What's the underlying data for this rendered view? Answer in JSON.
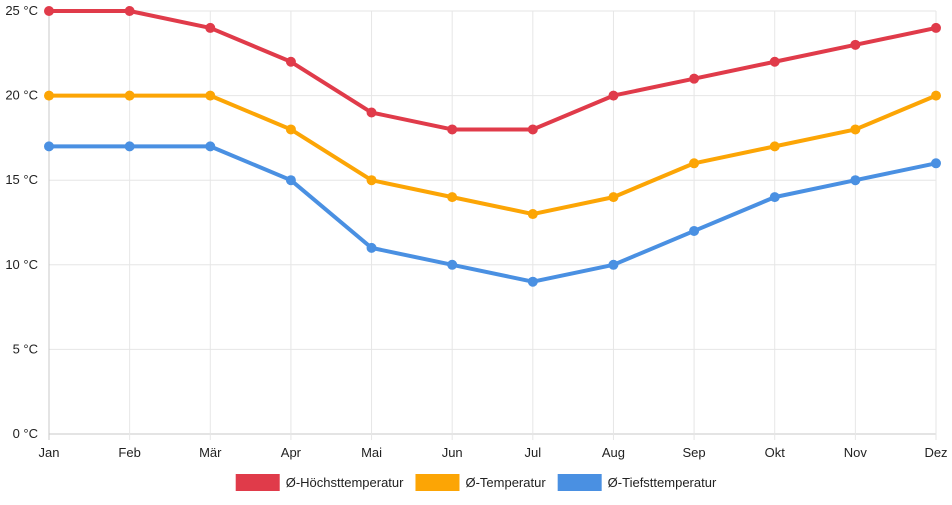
{
  "chart_data": {
    "type": "line",
    "categories": [
      "Jan",
      "Feb",
      "Mär",
      "Apr",
      "Mai",
      "Jun",
      "Jul",
      "Aug",
      "Sep",
      "Okt",
      "Nov",
      "Dez"
    ],
    "series": [
      {
        "name": "Ø-Höchsttemperatur",
        "color": "#e03b4a",
        "values": [
          25,
          25,
          24,
          22,
          19,
          18,
          18,
          20,
          21,
          22,
          23,
          24
        ]
      },
      {
        "name": "Ø-Temperatur",
        "color": "#fca505",
        "values": [
          20,
          20,
          20,
          18,
          15,
          14,
          13,
          14,
          16,
          17,
          18,
          20
        ]
      },
      {
        "name": "Ø-Tiefsttemperatur",
        "color": "#4a90e2",
        "values": [
          17,
          17,
          17,
          15,
          11,
          10,
          9,
          10,
          12,
          14,
          15,
          16
        ]
      }
    ],
    "y_ticks": [
      "0 °C",
      "5 °C",
      "10 °C",
      "15 °C",
      "20 °C",
      "25 °C"
    ],
    "ylim": [
      0,
      25
    ],
    "y_step": 5,
    "title": "",
    "xlabel": "",
    "ylabel": "",
    "grid": true,
    "legend_position": "bottom"
  }
}
